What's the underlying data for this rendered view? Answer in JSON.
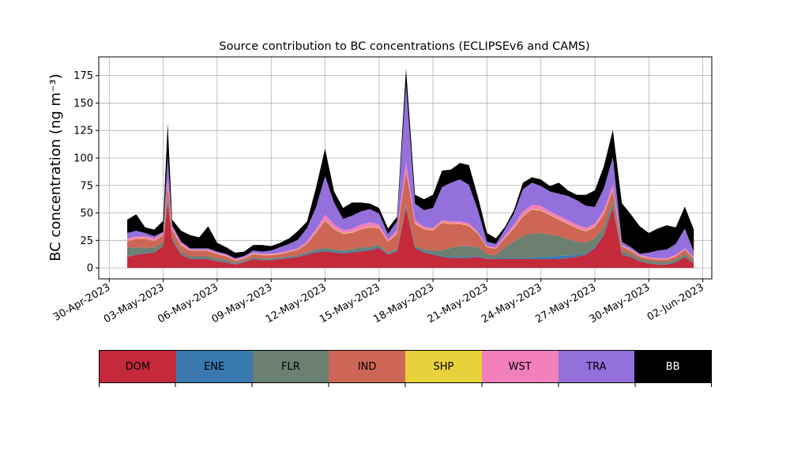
{
  "chart_data": {
    "type": "area",
    "title": "Source contribution to BC concentrations (ECLIPSEv6 and CAMS)",
    "ylabel": "BC concentration (ng m⁻³)",
    "xlabel": "",
    "ylim": [
      -10,
      192
    ],
    "yticks": [
      0,
      25,
      50,
      75,
      100,
      125,
      150,
      175
    ],
    "xlim": [
      "2023-04-29T10:00",
      "2023-06-02T12:00"
    ],
    "xticks": [
      "30-Apr-2023",
      "03-May-2023",
      "06-May-2023",
      "09-May-2023",
      "12-May-2023",
      "15-May-2023",
      "18-May-2023",
      "21-May-2023",
      "24-May-2023",
      "27-May-2023",
      "30-May-2023",
      "02-Jun-2023"
    ],
    "xtick_dates": [
      "2023-04-30",
      "2023-05-03",
      "2023-05-06",
      "2023-05-09",
      "2023-05-12",
      "2023-05-15",
      "2023-05-18",
      "2023-05-21",
      "2023-05-24",
      "2023-05-27",
      "2023-05-30",
      "2023-06-02"
    ],
    "grid": true,
    "stacked": true,
    "x": [
      "2023-05-01T00:00",
      "2023-05-01T12:00",
      "2023-05-02T00:00",
      "2023-05-02T12:00",
      "2023-05-03T00:00",
      "2023-05-03T06:00",
      "2023-05-03T12:00",
      "2023-05-04T00:00",
      "2023-05-04T12:00",
      "2023-05-05T00:00",
      "2023-05-05T12:00",
      "2023-05-06T00:00",
      "2023-05-06T12:00",
      "2023-05-07T00:00",
      "2023-05-07T12:00",
      "2023-05-08T00:00",
      "2023-05-08T12:00",
      "2023-05-09T00:00",
      "2023-05-09T12:00",
      "2023-05-10T00:00",
      "2023-05-10T12:00",
      "2023-05-11T00:00",
      "2023-05-11T12:00",
      "2023-05-12T00:00",
      "2023-05-12T12:00",
      "2023-05-13T00:00",
      "2023-05-13T12:00",
      "2023-05-14T00:00",
      "2023-05-14T12:00",
      "2023-05-15T00:00",
      "2023-05-15T12:00",
      "2023-05-16T00:00",
      "2023-05-16T12:00",
      "2023-05-17T00:00",
      "2023-05-17T12:00",
      "2023-05-18T00:00",
      "2023-05-18T12:00",
      "2023-05-19T00:00",
      "2023-05-19T12:00",
      "2023-05-20T00:00",
      "2023-05-20T12:00",
      "2023-05-21T00:00",
      "2023-05-21T12:00",
      "2023-05-22T00:00",
      "2023-05-22T12:00",
      "2023-05-23T00:00",
      "2023-05-23T12:00",
      "2023-05-24T00:00",
      "2023-05-24T12:00",
      "2023-05-25T00:00",
      "2023-05-25T12:00",
      "2023-05-26T00:00",
      "2023-05-26T12:00",
      "2023-05-27T00:00",
      "2023-05-27T12:00",
      "2023-05-28T00:00",
      "2023-05-28T12:00",
      "2023-05-29T00:00",
      "2023-05-29T12:00",
      "2023-05-30T00:00",
      "2023-05-30T12:00",
      "2023-05-31T00:00",
      "2023-05-31T12:00",
      "2023-06-01T00:00",
      "2023-06-01T12:00"
    ],
    "series": [
      {
        "name": "DOM",
        "color": "#c52a3a",
        "values": [
          10,
          12,
          13,
          14,
          20,
          60,
          25,
          12,
          8,
          8,
          8,
          6,
          5,
          3,
          5,
          8,
          7,
          7,
          8,
          9,
          10,
          12,
          14,
          15,
          14,
          13,
          14,
          15,
          16,
          18,
          12,
          15,
          55,
          18,
          14,
          12,
          10,
          9,
          9,
          9,
          10,
          8,
          8,
          8,
          8,
          8,
          8,
          8,
          8,
          8,
          9,
          10,
          12,
          18,
          30,
          55,
          12,
          10,
          6,
          4,
          3,
          3,
          5,
          10,
          4
        ]
      },
      {
        "name": "ENE",
        "color": "#3a78b0",
        "values": [
          0.5,
          0.5,
          0.5,
          0.5,
          0.5,
          1,
          0.5,
          0.5,
          0.5,
          0.5,
          0.5,
          0.5,
          0.5,
          0.5,
          0.5,
          0.5,
          0.5,
          0.5,
          0.5,
          0.5,
          0.5,
          1,
          1,
          1,
          1,
          1,
          1,
          1,
          1,
          1,
          0.5,
          1,
          1,
          1,
          1,
          1,
          1,
          1,
          1,
          1,
          1,
          0.5,
          0.5,
          1,
          1,
          1,
          1,
          2,
          2,
          3,
          2,
          2,
          1,
          1,
          1,
          1,
          0.5,
          0.5,
          0.5,
          0.5,
          0.5,
          0.5,
          0.5,
          0.5,
          0.5
        ]
      },
      {
        "name": "FLR",
        "color": "#6b8070",
        "values": [
          8,
          6,
          5,
          4,
          3,
          4,
          3,
          2,
          2,
          2,
          2,
          2,
          2,
          1,
          1,
          1,
          1,
          1,
          1,
          1,
          1,
          1,
          2,
          2,
          2,
          2,
          2,
          3,
          2,
          2,
          1,
          1,
          2,
          1,
          2,
          3,
          5,
          8,
          10,
          10,
          8,
          4,
          3,
          10,
          15,
          20,
          22,
          22,
          20,
          18,
          15,
          12,
          10,
          8,
          6,
          5,
          3,
          2,
          2,
          2,
          2,
          2,
          2,
          2,
          2
        ]
      },
      {
        "name": "IND",
        "color": "#cd6655",
        "values": [
          6,
          8,
          8,
          6,
          6,
          10,
          6,
          6,
          5,
          5,
          5,
          4,
          3,
          2,
          2,
          3,
          3,
          3,
          3,
          4,
          5,
          8,
          15,
          25,
          18,
          15,
          15,
          16,
          18,
          15,
          10,
          14,
          30,
          20,
          18,
          18,
          25,
          22,
          20,
          18,
          12,
          6,
          6,
          8,
          12,
          18,
          22,
          20,
          18,
          15,
          14,
          12,
          10,
          10,
          12,
          10,
          4,
          3,
          2,
          2,
          2,
          2,
          3,
          4,
          2
        ]
      },
      {
        "name": "SHP",
        "color": "#e8d13a",
        "values": [
          0.3,
          0.3,
          0.3,
          0.3,
          0.3,
          0.5,
          0.3,
          0.3,
          0.3,
          0.3,
          0.3,
          0.3,
          0.3,
          0.3,
          0.3,
          0.3,
          0.3,
          0.3,
          0.3,
          0.3,
          0.3,
          0.3,
          0.3,
          0.5,
          0.5,
          0.5,
          0.5,
          0.5,
          0.5,
          0.5,
          0.3,
          0.5,
          0.5,
          0.5,
          0.5,
          0.5,
          0.5,
          0.5,
          0.5,
          0.5,
          0.5,
          0.3,
          0.3,
          0.3,
          0.5,
          0.5,
          0.5,
          0.5,
          0.5,
          0.5,
          0.5,
          0.5,
          0.5,
          0.5,
          0.5,
          0.5,
          0.3,
          0.3,
          0.3,
          0.3,
          0.3,
          0.3,
          0.3,
          0.3,
          0.3
        ]
      },
      {
        "name": "WST",
        "color": "#f07fbc",
        "values": [
          2,
          2,
          2,
          2,
          2,
          6,
          2,
          2,
          1,
          1,
          1,
          1,
          1,
          1,
          1,
          1,
          1,
          1,
          1,
          1,
          1,
          2,
          3,
          5,
          4,
          3,
          3,
          4,
          4,
          3,
          2,
          3,
          8,
          3,
          2,
          2,
          2,
          2,
          2,
          2,
          1,
          1,
          1,
          2,
          3,
          4,
          4,
          4,
          3,
          3,
          3,
          3,
          3,
          3,
          3,
          4,
          1,
          1,
          1,
          1,
          1,
          1,
          1,
          1,
          1
        ]
      },
      {
        "name": "TRA",
        "color": "#9370db",
        "values": [
          5,
          5,
          3,
          2,
          1,
          20,
          2,
          1,
          1,
          1,
          1,
          1,
          1,
          1,
          1,
          2,
          2,
          3,
          5,
          6,
          8,
          12,
          20,
          35,
          20,
          10,
          12,
          12,
          12,
          10,
          5,
          8,
          70,
          15,
          15,
          18,
          30,
          35,
          38,
          35,
          20,
          4,
          3,
          6,
          10,
          20,
          20,
          18,
          18,
          20,
          22,
          22,
          20,
          15,
          20,
          25,
          3,
          2,
          1,
          4,
          7,
          8,
          10,
          18,
          5
        ]
      },
      {
        "name": "BB",
        "color": "#000000",
        "values": [
          12,
          15,
          5,
          6,
          10,
          30,
          5,
          10,
          12,
          10,
          20,
          8,
          6,
          5,
          4,
          5,
          6,
          4,
          4,
          5,
          8,
          6,
          18,
          25,
          10,
          10,
          12,
          8,
          5,
          5,
          5,
          4,
          15,
          8,
          10,
          12,
          15,
          12,
          15,
          18,
          12,
          8,
          5,
          2,
          3,
          6,
          5,
          6,
          5,
          10,
          5,
          5,
          10,
          15,
          20,
          25,
          35,
          30,
          25,
          18,
          20,
          22,
          15,
          20,
          20
        ]
      }
    ],
    "legend": [
      "DOM",
      "ENE",
      "FLR",
      "IND",
      "SHP",
      "WST",
      "TRA",
      "BB"
    ]
  }
}
